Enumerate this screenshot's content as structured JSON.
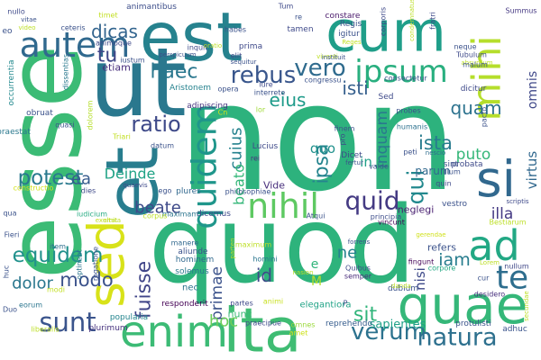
{
  "cloud": {
    "background": "#ffffff",
    "words": [
      {
        "text": "non",
        "color": "#2db27d"
      },
      {
        "text": "quod",
        "color": "#2eb37c"
      },
      {
        "text": "esse",
        "color": "#3bbb75"
      },
      {
        "text": "est",
        "color": "#26828e"
      },
      {
        "text": "cum",
        "color": "#1f9e89"
      },
      {
        "text": "ut",
        "color": "#2a788e"
      },
      {
        "text": "et",
        "color": "#287d8e"
      },
      {
        "text": "sed",
        "color": "#d8e219"
      },
      {
        "text": "ita",
        "color": "#3fbc73"
      },
      {
        "text": "quae",
        "color": "#35b779"
      },
      {
        "text": "enim",
        "color": "#3cbb75"
      },
      {
        "text": "si",
        "color": "#31688e"
      },
      {
        "text": "ad",
        "color": "#22a884"
      },
      {
        "text": "mihi",
        "color": "#b5de2b"
      },
      {
        "text": "te",
        "color": "#2e6e8e"
      },
      {
        "text": "ipsum",
        "color": "#29af7f"
      },
      {
        "text": "autem",
        "color": "#30698e"
      },
      {
        "text": "quidem",
        "color": "#1f968b"
      },
      {
        "text": "verum",
        "color": "#2c728e"
      },
      {
        "text": "natura",
        "color": "#2d708e"
      },
      {
        "text": "nihil",
        "color": "#5ec962"
      },
      {
        "text": "quid",
        "color": "#443a83"
      },
      {
        "text": "vero",
        "color": "#2f6b8e"
      },
      {
        "text": "rebus",
        "color": "#39568c"
      },
      {
        "text": "sunt",
        "color": "#3a548c"
      },
      {
        "text": "equidem",
        "color": "#21918c"
      },
      {
        "text": "potest",
        "color": "#29798e"
      },
      {
        "text": "dicas",
        "color": "#32648e"
      },
      {
        "text": "tu",
        "color": "#404688"
      },
      {
        "text": "ratio",
        "color": "#3e4989"
      },
      {
        "text": "haec",
        "color": "#2a778e"
      },
      {
        "text": "eius",
        "color": "#1e9b8a"
      },
      {
        "text": "isti",
        "color": "#355f8d"
      },
      {
        "text": "ipsa",
        "color": "#25848e"
      },
      {
        "text": "qui",
        "color": "#23898e"
      },
      {
        "text": "quam",
        "color": "#2c728e"
      },
      {
        "text": "ista",
        "color": "#287c8e"
      },
      {
        "text": "sit",
        "color": "#31b57b"
      },
      {
        "text": "iam",
        "color": "#287d8e"
      },
      {
        "text": "fuisse",
        "color": "#404588"
      },
      {
        "text": "modo",
        "color": "#3b528b"
      },
      {
        "text": "dolor",
        "color": "#2a778e"
      },
      {
        "text": "beate",
        "color": "#3e4a89"
      },
      {
        "text": "Deinde",
        "color": "#20a386"
      },
      {
        "text": "ea",
        "color": "#375b8d"
      },
      {
        "text": "primae",
        "color": "#3b528b"
      },
      {
        "text": "hoc",
        "color": "#6ccd5a"
      },
      {
        "text": "puto",
        "color": "#35b779"
      },
      {
        "text": "illa",
        "color": "#443983"
      },
      {
        "text": "virtus",
        "color": "#31688e"
      },
      {
        "text": "omnis",
        "color": "#3f4889"
      },
      {
        "text": "cuius",
        "color": "#26828e"
      },
      {
        "text": "inquam",
        "color": "#2a788e"
      },
      {
        "text": "beato",
        "color": "#35b779"
      },
      {
        "text": "id",
        "color": "#3e4989"
      },
      {
        "text": "ne",
        "color": "#26828e"
      },
      {
        "text": "quo",
        "color": "#21918c"
      },
      {
        "text": "nisi",
        "color": "#3e4989"
      },
      {
        "text": "etiam",
        "color": "#472d7b"
      },
      {
        "text": "in",
        "color": "#1fa088"
      },
      {
        "text": "Vide",
        "color": "#472d7b"
      },
      {
        "text": "parum",
        "color": "#31688e"
      },
      {
        "text": "neglegi",
        "color": "#481f70"
      },
      {
        "text": "vestro",
        "color": "#3b528b"
      },
      {
        "text": "refers",
        "color": "#3b528b"
      },
      {
        "text": "M",
        "color": "#b5de2b"
      },
      {
        "text": "e",
        "color": "#31b57b"
      },
      {
        "text": "nunc",
        "color": "#3aba76"
      },
      {
        "text": "nec",
        "color": "#2c728e"
      },
      {
        "text": "elegantiora",
        "color": "#20a386"
      },
      {
        "text": "sapientes",
        "color": "#1fa188"
      },
      {
        "text": "responderit",
        "color": "#440154"
      },
      {
        "text": "Bestiarum",
        "color": "#bddf26"
      },
      {
        "text": "Cn",
        "color": "#cae11f"
      },
      {
        "text": "lor",
        "color": "#a0da39"
      },
      {
        "text": "animantibus",
        "color": "#3d4e8a"
      },
      {
        "text": "adipiscing",
        "color": "#46337f"
      },
      {
        "text": "Aristonem",
        "color": "#26828e"
      },
      {
        "text": "congressu",
        "color": "#3b528b"
      },
      {
        "text": "constare",
        "color": "#48186a"
      },
      {
        "text": "Summus",
        "color": "#453882"
      },
      {
        "text": "consectetur",
        "color": "#3b528b"
      },
      {
        "text": "occurrentia",
        "color": "#23898e"
      },
      {
        "text": "praestat",
        "color": "#2a788e"
      },
      {
        "text": "obruat",
        "color": "#3b528b"
      },
      {
        "text": "constructio",
        "color": "#d2e21b"
      },
      {
        "text": "popularia",
        "color": "#25858e"
      },
      {
        "text": "plurimum",
        "color": "#46327e"
      },
      {
        "text": "praecipue",
        "color": "#3e4989"
      },
      {
        "text": "reprehendo",
        "color": "#365d8d"
      },
      {
        "text": "protulisti",
        "color": "#3a538b"
      },
      {
        "text": "principia",
        "color": "#3d4d8a"
      },
      {
        "text": "vincunt",
        "color": "#440154"
      },
      {
        "text": "maximum",
        "color": "#bddf26"
      },
      {
        "text": "aliunde",
        "color": "#3b528b"
      },
      {
        "text": "hominem",
        "color": "#30698e"
      },
      {
        "text": "solemus",
        "color": "#2a788e"
      },
      {
        "text": "desidero",
        "color": "#472f7d"
      },
      {
        "text": "nullum",
        "color": "#3f4788"
      },
      {
        "text": "corpore",
        "color": "#23a983"
      },
      {
        "text": "dubium",
        "color": "#3b528b"
      },
      {
        "text": "fingunt",
        "color": "#46075a"
      },
      {
        "text": "Quibus",
        "color": "#3e4a89"
      },
      {
        "text": "semper",
        "color": "#472a7a"
      },
      {
        "text": "partes",
        "color": "#3e4989"
      },
      {
        "text": "animi",
        "color": "#c8e020"
      },
      {
        "text": "omnes",
        "color": "#9bd93c"
      },
      {
        "text": "amet",
        "color": "#cde11d"
      },
      {
        "text": "adhuc",
        "color": "#3a548c"
      },
      {
        "text": "Duo",
        "color": "#3b528b"
      },
      {
        "text": "eorum",
        "color": "#2b758e"
      },
      {
        "text": "liberalis",
        "color": "#bddf26"
      },
      {
        "text": "Fieri",
        "color": "#3b528b"
      },
      {
        "text": "item",
        "color": "#2e6e8e"
      },
      {
        "text": "rogatione",
        "color": "#3b528b"
      },
      {
        "text": "optineat",
        "color": "#2b748e"
      },
      {
        "text": "iudicium",
        "color": "#25ab82"
      },
      {
        "text": "exultat",
        "color": "#c2df23"
      },
      {
        "text": "manere",
        "color": "#31688e"
      },
      {
        "text": "parten",
        "color": "#bddf26"
      },
      {
        "text": "homini",
        "color": "#2a768e"
      },
      {
        "text": "Atqui",
        "color": "#3b528b"
      },
      {
        "text": "dicemus",
        "color": "#3e4989"
      },
      {
        "text": "plures",
        "color": "#31688e"
      },
      {
        "text": "maximam",
        "color": "#2b758e"
      },
      {
        "text": "corpus",
        "color": "#bddf26"
      },
      {
        "text": "ego",
        "color": "#3b528b"
      },
      {
        "text": "philosophiae",
        "color": "#3b528b"
      },
      {
        "text": "Lucius",
        "color": "#3e4989"
      },
      {
        "text": "rei",
        "color": "#46327e"
      },
      {
        "text": "Dicet",
        "color": "#3e4989"
      },
      {
        "text": "valde",
        "color": "#3b528b"
      },
      {
        "text": "fertur",
        "color": "#3b528b"
      },
      {
        "text": "finem",
        "color": "#3b528b"
      },
      {
        "text": "pro",
        "color": "#3e4989"
      },
      {
        "text": "probes",
        "color": "#3b528b"
      },
      {
        "text": "humanis",
        "color": "#2c718e"
      },
      {
        "text": "peti",
        "color": "#3b528b"
      },
      {
        "text": "nescio",
        "color": "#2f6c8e"
      },
      {
        "text": "sint",
        "color": "#3b528b"
      },
      {
        "text": "illum",
        "color": "#3b528b"
      },
      {
        "text": "quin",
        "color": "#3e4989"
      },
      {
        "text": "gerendae",
        "color": "#d0e11c"
      },
      {
        "text": "probata",
        "color": "#3e4989"
      },
      {
        "text": "cur",
        "color": "#3b528b"
      },
      {
        "text": "pacto",
        "color": "#3b528b"
      },
      {
        "text": "scriptis",
        "color": "#3e4989"
      },
      {
        "text": "secundae",
        "color": "#bddf26"
      },
      {
        "text": "Lorem",
        "color": "#bddf26"
      },
      {
        "text": "forrens",
        "color": "#3b528b"
      },
      {
        "text": "dolorem",
        "color": "#b5de2b"
      },
      {
        "text": "quasi",
        "color": "#3b528b"
      },
      {
        "text": "datum",
        "color": "#3b528b"
      },
      {
        "text": "Triari",
        "color": "#c2df23"
      },
      {
        "text": "quaevis",
        "color": "#3e4989"
      },
      {
        "text": "dies",
        "color": "#3e4989"
      },
      {
        "text": "emita",
        "color": "#bddf26"
      },
      {
        "text": "qua",
        "color": "#3b528b"
      },
      {
        "text": "huc",
        "color": "#3b528b"
      },
      {
        "text": "modi",
        "color": "#c2df23"
      },
      {
        "text": "nullo",
        "color": "#3e4989"
      },
      {
        "text": "eo",
        "color": "#3b528b"
      },
      {
        "text": "video",
        "color": "#bddf26"
      },
      {
        "text": "vitae",
        "color": "#3b528b"
      },
      {
        "text": "dissentias",
        "color": "#2a788e"
      },
      {
        "text": "ceteris",
        "color": "#3b528b"
      },
      {
        "text": "animoque",
        "color": "#3e4989"
      },
      {
        "text": "iustum",
        "color": "#3b528b"
      },
      {
        "text": "timet",
        "color": "#c2df23"
      },
      {
        "text": "Tum",
        "color": "#3e4989"
      },
      {
        "text": "re",
        "color": "#3b528b"
      },
      {
        "text": "tamen",
        "color": "#3e4989"
      },
      {
        "text": "Regis",
        "color": "#3b528b"
      },
      {
        "text": "Reges",
        "color": "#c2df23"
      },
      {
        "text": "igitur",
        "color": "#3b528b"
      },
      {
        "text": "corporis",
        "color": "#3e4989"
      },
      {
        "text": "condemnatus",
        "color": "#bddf26"
      },
      {
        "text": "fratri",
        "color": "#3e4989"
      },
      {
        "text": "neque",
        "color": "#3b528b"
      },
      {
        "text": "Tubulum",
        "color": "#3e4989"
      },
      {
        "text": "absurdum",
        "color": "#bddf26"
      },
      {
        "text": "malum",
        "color": "#3b528b"
      },
      {
        "text": "dicitur",
        "color": "#3e4989"
      },
      {
        "text": "habes",
        "color": "#3b528b"
      },
      {
        "text": "inquit",
        "color": "#3e4989"
      },
      {
        "text": "perspicuum",
        "color": "#3b528b"
      },
      {
        "text": "oratio",
        "color": "#bddf26"
      },
      {
        "text": "prima",
        "color": "#3e4989"
      },
      {
        "text": "sequitur",
        "color": "#3b528b"
      },
      {
        "text": "elit",
        "color": "#3e4989"
      },
      {
        "text": "viventi",
        "color": "#bddf26"
      },
      {
        "text": "instituit",
        "color": "#3b528b"
      },
      {
        "text": "opera",
        "color": "#3b528b"
      },
      {
        "text": "iure",
        "color": "#3e4989"
      },
      {
        "text": "interrete",
        "color": "#3b528b"
      },
      {
        "text": "Sed",
        "color": "#3e4989"
      },
      {
        "text": "nasion",
        "color": "#bddf26"
      },
      {
        "text": "P",
        "color": "#3e4989"
      },
      {
        "text": "danda",
        "color": "#bddf26"
      }
    ]
  }
}
